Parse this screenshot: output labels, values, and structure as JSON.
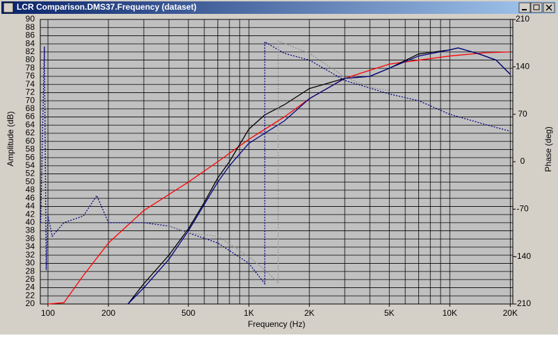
{
  "window_title": "LCR Comparison.DMS37.Frequency (dataset)",
  "chart_data": {
    "type": "line",
    "log_x": true,
    "grid": true,
    "xlabel": "Frequency (Hz)",
    "ylabel": "Amplitude (dB)",
    "y2label": "Phase (deg)",
    "xlim": [
      91.6,
      20600
    ],
    "ylim": [
      20,
      90
    ],
    "y2lim": [
      -210,
      210
    ],
    "xticks": [
      100,
      200,
      500,
      {
        "value": 1000,
        "label": "1K"
      },
      {
        "value": 2000,
        "label": "2K"
      },
      {
        "value": 5000,
        "label": "5K"
      },
      {
        "value": 10000,
        "label": "10K"
      },
      {
        "value": 20000,
        "label": "20K"
      }
    ],
    "xgrid": [
      100,
      200,
      300,
      400,
      500,
      600,
      700,
      800,
      900,
      1000,
      2000,
      3000,
      4000,
      5000,
      6000,
      7000,
      8000,
      9000,
      10000,
      20000
    ],
    "yticks": [
      20,
      22,
      24,
      26,
      28,
      30,
      32,
      34,
      36,
      38,
      40,
      42,
      44,
      46,
      48,
      50,
      52,
      54,
      56,
      58,
      60,
      62,
      64,
      66,
      68,
      70,
      72,
      74,
      76,
      78,
      80,
      82,
      84,
      86,
      88,
      90
    ],
    "y2ticks": [
      210,
      140,
      70,
      0,
      -70,
      -140,
      -210
    ],
    "series": [
      {
        "color": "#ff0000",
        "dash": false,
        "x": [
          100,
          120,
          150,
          200,
          300,
          500,
          700,
          1000,
          1500,
          2000,
          3000,
          5000,
          10000,
          15000,
          20000
        ],
        "values": [
          20,
          20.3,
          27,
          35,
          43,
          50,
          55,
          60.5,
          66,
          70.5,
          75.5,
          79,
          81,
          81.8,
          82
        ]
      },
      {
        "color": "#000000",
        "dash": false,
        "x": [
          250,
          300,
          400,
          500,
          600,
          700,
          800,
          1000,
          1200,
          1500,
          2000,
          3000,
          4000,
          5000,
          7000,
          10000,
          11000,
          14000,
          17000,
          20000
        ],
        "values": [
          20,
          25,
          32,
          38.5,
          45,
          51,
          55,
          63,
          66.5,
          69,
          73,
          75.5,
          76,
          78,
          81.5,
          82.5,
          83,
          81.5,
          80,
          76.5
        ]
      },
      {
        "color": "#000080",
        "dash": false,
        "x": [
          250,
          300,
          400,
          500,
          600,
          700,
          800,
          1000,
          1200,
          1500,
          2000,
          3000,
          4000,
          5000,
          7000,
          10000,
          11000,
          14000,
          17000,
          20000
        ],
        "values": [
          20,
          24,
          31,
          38,
          44.5,
          50,
          54,
          59.5,
          62,
          65,
          70.5,
          75.5,
          76,
          78,
          81,
          82.5,
          83,
          81.5,
          80,
          76.5
        ]
      },
      {
        "color": "#000080",
        "dash": true,
        "axis": "y2",
        "x": [
          92,
          96,
          98,
          100,
          105,
          120,
          150,
          175,
          200,
          300,
          400,
          500,
          700,
          1000,
          1200,
          1200,
          1500,
          2000,
          3000,
          5000,
          7000,
          10000,
          15000,
          20000
        ],
        "values": [
          -90,
          170,
          -160,
          -80,
          -110,
          -90,
          -80,
          -50,
          -90,
          -90,
          -95,
          -105,
          -120,
          -150,
          -180,
          177,
          160,
          150,
          120,
          100,
          90,
          70,
          55,
          45
        ]
      },
      {
        "color": "#909090",
        "dash": true,
        "axis": "y2",
        "x": [
          400,
          500,
          700,
          1000,
          1200,
          1400,
          1400,
          2000,
          3000,
          4000,
          5000
        ],
        "values": [
          -95,
          -105,
          -110,
          -140,
          -160,
          -178,
          178,
          160,
          125,
          110,
          105
        ]
      }
    ]
  }
}
